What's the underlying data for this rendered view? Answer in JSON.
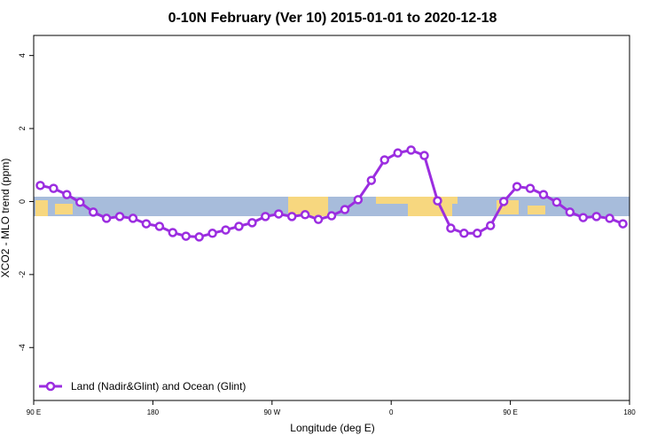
{
  "chart_data": {
    "type": "line",
    "title": "0-10N February (Ver 10)   2015-01-01 to 2020-12-18",
    "x_label": "Longitude (deg E)",
    "y_label": "XCO2 - MLO trend (ppm)",
    "x": [
      95,
      105,
      115,
      125,
      135,
      145,
      155,
      165,
      175,
      185,
      195,
      205,
      215,
      225,
      235,
      245,
      255,
      265,
      275,
      285,
      295,
      305,
      315,
      325,
      335,
      345,
      355,
      365,
      375,
      385,
      395,
      405,
      415,
      425,
      435,
      445,
      455,
      465,
      475,
      485,
      495,
      505,
      515,
      525,
      535
    ],
    "series": [
      {
        "name": "Land (Nadir&Glint) and Ocean (Glint)",
        "color": "#9b2de0",
        "values": [
          0.44,
          0.36,
          0.19,
          -0.02,
          -0.29,
          -0.46,
          -0.41,
          -0.46,
          -0.61,
          -0.68,
          -0.85,
          -0.95,
          -0.97,
          -0.87,
          -0.78,
          -0.68,
          -0.58,
          -0.41,
          -0.34,
          -0.41,
          -0.36,
          -0.49,
          -0.39,
          -0.22,
          0.05,
          0.58,
          1.14,
          1.33,
          1.41,
          1.26,
          0.02,
          -0.73,
          -0.87,
          -0.87,
          -0.66,
          0.0,
          0.41,
          0.36,
          0.19,
          -0.02,
          -0.29,
          -0.44,
          -0.41,
          -0.46,
          -0.61
        ]
      }
    ],
    "xlim": [
      90,
      540
    ],
    "xticks": [
      {
        "value": 90,
        "label": "90 E"
      },
      180,
      {
        "value": 270,
        "label": "90 W"
      },
      {
        "value": 360,
        "label": "0"
      },
      {
        "value": 450,
        "label": "90 E"
      },
      {
        "value": 540,
        "label": "180"
      }
    ],
    "ylim": [
      -5.45,
      4.55
    ],
    "yticks": [
      -4,
      -2,
      0,
      2,
      4
    ],
    "legend": "bottom-left"
  }
}
